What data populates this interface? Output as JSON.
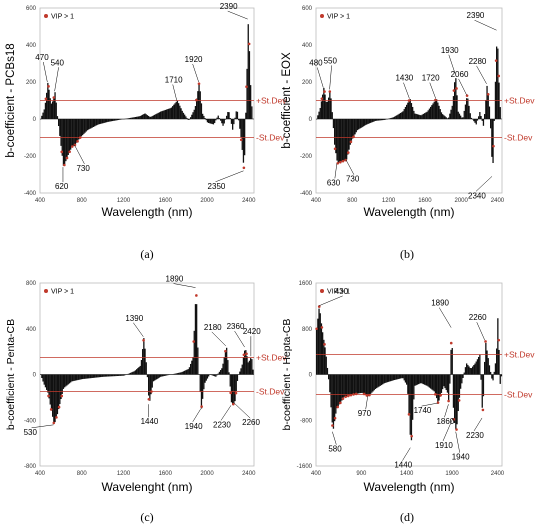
{
  "chart_data": [
    {
      "id": "a",
      "type": "area",
      "caption": "(a)",
      "ylabel": "b-coefficient - PCBs18",
      "xlabel": "Wavelength (nm)",
      "xlim": [
        400,
        2450
      ],
      "ylim": [
        -400,
        600
      ],
      "xticks": [
        400,
        800,
        1200,
        1600,
        2000,
        2400
      ],
      "yticks": [
        -400,
        -200,
        0,
        200,
        400,
        600
      ],
      "legend": "VIP > 1",
      "sd_plus_label": "+St.Dev",
      "sd_minus_label": "-St.Dev",
      "sd_value": 100,
      "annotations": [
        {
          "label": "470",
          "x": 470,
          "y": 200
        },
        {
          "label": "540",
          "x": 540,
          "y": 150
        },
        {
          "label": "620",
          "x": 620,
          "y": -260
        },
        {
          "label": "730",
          "x": 730,
          "y": -140
        },
        {
          "label": "1710",
          "x": 1710,
          "y": 100
        },
        {
          "label": "1920",
          "x": 1920,
          "y": 200
        },
        {
          "label": "2350",
          "x": 2350,
          "y": -280
        },
        {
          "label": "2390",
          "x": 2390,
          "y": 540
        }
      ],
      "profile": [
        [
          400,
          0
        ],
        [
          440,
          60
        ],
        [
          470,
          200
        ],
        [
          500,
          80
        ],
        [
          520,
          100
        ],
        [
          540,
          150
        ],
        [
          560,
          20
        ],
        [
          590,
          -120
        ],
        [
          620,
          -260
        ],
        [
          660,
          -200
        ],
        [
          700,
          -150
        ],
        [
          730,
          -140
        ],
        [
          780,
          -100
        ],
        [
          850,
          -60
        ],
        [
          950,
          -30
        ],
        [
          1050,
          -15
        ],
        [
          1150,
          -5
        ],
        [
          1250,
          5
        ],
        [
          1350,
          15
        ],
        [
          1400,
          30
        ],
        [
          1450,
          10
        ],
        [
          1500,
          25
        ],
        [
          1550,
          40
        ],
        [
          1600,
          50
        ],
        [
          1650,
          60
        ],
        [
          1710,
          100
        ],
        [
          1760,
          40
        ],
        [
          1820,
          -10
        ],
        [
          1880,
          60
        ],
        [
          1920,
          200
        ],
        [
          1950,
          30
        ],
        [
          2000,
          -20
        ],
        [
          2060,
          -30
        ],
        [
          2100,
          20
        ],
        [
          2150,
          -40
        ],
        [
          2200,
          50
        ],
        [
          2240,
          -60
        ],
        [
          2280,
          60
        ],
        [
          2320,
          -100
        ],
        [
          2350,
          -280
        ],
        [
          2370,
          120
        ],
        [
          2390,
          540
        ],
        [
          2410,
          200
        ],
        [
          2430,
          0
        ]
      ]
    },
    {
      "id": "b",
      "type": "area",
      "caption": "(b)",
      "ylabel": "b-coefficient - EOX",
      "xlabel": "Wavelength (nm)",
      "xlim": [
        400,
        2450
      ],
      "ylim": [
        -400,
        600
      ],
      "xticks": [
        400,
        800,
        1200,
        1600,
        2000,
        2400
      ],
      "yticks": [
        -400,
        -200,
        0,
        200,
        400,
        600
      ],
      "legend": "VIP > 1",
      "sd_plus_label": "+St.Dev",
      "sd_minus_label": "-St.Dev",
      "sd_value": 100,
      "annotations": [
        {
          "label": "480",
          "x": 480,
          "y": 170
        },
        {
          "label": "550",
          "x": 550,
          "y": 160
        },
        {
          "label": "630",
          "x": 630,
          "y": -240
        },
        {
          "label": "730",
          "x": 730,
          "y": -220
        },
        {
          "label": "1430",
          "x": 1430,
          "y": 110
        },
        {
          "label": "1720",
          "x": 1720,
          "y": 110
        },
        {
          "label": "1930",
          "x": 1930,
          "y": 250
        },
        {
          "label": "2060",
          "x": 2060,
          "y": 130
        },
        {
          "label": "2280",
          "x": 2280,
          "y": 190
        },
        {
          "label": "2340",
          "x": 2340,
          "y": -310
        },
        {
          "label": "2390",
          "x": 2390,
          "y": 480
        }
      ],
      "profile": [
        [
          400,
          0
        ],
        [
          440,
          60
        ],
        [
          480,
          170
        ],
        [
          510,
          80
        ],
        [
          530,
          110
        ],
        [
          550,
          160
        ],
        [
          575,
          20
        ],
        [
          600,
          -150
        ],
        [
          630,
          -240
        ],
        [
          680,
          -230
        ],
        [
          730,
          -220
        ],
        [
          780,
          -120
        ],
        [
          850,
          -60
        ],
        [
          950,
          -30
        ],
        [
          1050,
          -10
        ],
        [
          1150,
          -5
        ],
        [
          1250,
          10
        ],
        [
          1350,
          40
        ],
        [
          1430,
          110
        ],
        [
          1480,
          30
        ],
        [
          1550,
          20
        ],
        [
          1620,
          40
        ],
        [
          1720,
          110
        ],
        [
          1780,
          30
        ],
        [
          1850,
          0
        ],
        [
          1900,
          80
        ],
        [
          1930,
          250
        ],
        [
          1960,
          40
        ],
        [
          2010,
          0
        ],
        [
          2060,
          130
        ],
        [
          2100,
          10
        ],
        [
          2160,
          -30
        ],
        [
          2200,
          40
        ],
        [
          2240,
          -40
        ],
        [
          2280,
          190
        ],
        [
          2310,
          40
        ],
        [
          2340,
          -310
        ],
        [
          2365,
          120
        ],
        [
          2390,
          480
        ],
        [
          2410,
          200
        ],
        [
          2430,
          0
        ]
      ]
    },
    {
      "id": "c",
      "type": "area",
      "caption": "(c)",
      "ylabel": "b-coefficient - Penta-CB",
      "xlabel": "Wavelenght (nm)",
      "xlim": [
        400,
        2450
      ],
      "ylim": [
        -800,
        800
      ],
      "xticks": [
        400,
        800,
        1200,
        1600,
        2000,
        2400
      ],
      "yticks": [
        -800,
        -400,
        0,
        400,
        800
      ],
      "legend": "VIP > 1",
      "sd_plus_label": "+St.Dev",
      "sd_minus_label": "-St.Dev",
      "sd_value": 150,
      "annotations": [
        {
          "label": "530",
          "x": 530,
          "y": -440
        },
        {
          "label": "1390",
          "x": 1390,
          "y": 330
        },
        {
          "label": "1440",
          "x": 1440,
          "y": -260
        },
        {
          "label": "1890",
          "x": 1890,
          "y": 760
        },
        {
          "label": "1940",
          "x": 1940,
          "y": -300
        },
        {
          "label": "2180",
          "x": 2180,
          "y": 250
        },
        {
          "label": "2230",
          "x": 2230,
          "y": -270
        },
        {
          "label": "2260",
          "x": 2260,
          "y": -250
        },
        {
          "label": "2360",
          "x": 2360,
          "y": 240
        },
        {
          "label": "2420",
          "x": 2420,
          "y": 160
        }
      ],
      "profile": [
        [
          400,
          0
        ],
        [
          430,
          -80
        ],
        [
          470,
          -160
        ],
        [
          500,
          -300
        ],
        [
          530,
          -440
        ],
        [
          560,
          -350
        ],
        [
          620,
          -120
        ],
        [
          700,
          -60
        ],
        [
          800,
          -40
        ],
        [
          900,
          -30
        ],
        [
          1000,
          -20
        ],
        [
          1100,
          -15
        ],
        [
          1200,
          -10
        ],
        [
          1300,
          30
        ],
        [
          1360,
          80
        ],
        [
          1390,
          330
        ],
        [
          1420,
          20
        ],
        [
          1440,
          -260
        ],
        [
          1480,
          -60
        ],
        [
          1550,
          -20
        ],
        [
          1650,
          0
        ],
        [
          1750,
          20
        ],
        [
          1820,
          50
        ],
        [
          1860,
          150
        ],
        [
          1890,
          760
        ],
        [
          1910,
          100
        ],
        [
          1940,
          -300
        ],
        [
          1970,
          -80
        ],
        [
          2020,
          0
        ],
        [
          2080,
          -20
        ],
        [
          2140,
          60
        ],
        [
          2180,
          250
        ],
        [
          2210,
          -30
        ],
        [
          2230,
          -270
        ],
        [
          2260,
          -250
        ],
        [
          2290,
          -20
        ],
        [
          2330,
          80
        ],
        [
          2360,
          240
        ],
        [
          2390,
          100
        ],
        [
          2420,
          160
        ],
        [
          2440,
          0
        ]
      ]
    },
    {
      "id": "d",
      "type": "area",
      "caption": "(d)",
      "ylabel": "b-coefficient - Hepta-CB",
      "xlabel": "Wavelength (nm)",
      "xlim": [
        400,
        2450
      ],
      "ylim": [
        -1600,
        1600
      ],
      "xticks": [
        400,
        900,
        1400,
        1900,
        2400
      ],
      "yticks": [
        -1600,
        -800,
        0,
        800,
        1600
      ],
      "legend": "VIP > 1",
      "sd_plus_label": "+St.Dev",
      "sd_minus_label": "-St.Dev",
      "sd_value": 350,
      "annotations": [
        {
          "label": "430",
          "x": 430,
          "y": 1200
        },
        {
          "label": "580",
          "x": 580,
          "y": -1000
        },
        {
          "label": "970",
          "x": 970,
          "y": -380
        },
        {
          "label": "1440",
          "x": 1440,
          "y": -1280
        },
        {
          "label": "1740",
          "x": 1740,
          "y": -500
        },
        {
          "label": "1860",
          "x": 1860,
          "y": -520
        },
        {
          "label": "1890",
          "x": 1890,
          "y": 820
        },
        {
          "label": "1910",
          "x": 1910,
          "y": -760
        },
        {
          "label": "1940",
          "x": 1940,
          "y": -1000
        },
        {
          "label": "2230",
          "x": 2230,
          "y": -760
        },
        {
          "label": "2260",
          "x": 2260,
          "y": 600
        }
      ],
      "profile": [
        [
          400,
          800
        ],
        [
          430,
          1200
        ],
        [
          460,
          800
        ],
        [
          500,
          400
        ],
        [
          540,
          -200
        ],
        [
          580,
          -1000
        ],
        [
          620,
          -600
        ],
        [
          700,
          -400
        ],
        [
          800,
          -350
        ],
        [
          900,
          -320
        ],
        [
          970,
          -380
        ],
        [
          1050,
          -250
        ],
        [
          1150,
          -150
        ],
        [
          1250,
          -100
        ],
        [
          1350,
          -60
        ],
        [
          1400,
          -200
        ],
        [
          1440,
          -1280
        ],
        [
          1480,
          -200
        ],
        [
          1550,
          -150
        ],
        [
          1620,
          -200
        ],
        [
          1700,
          -300
        ],
        [
          1740,
          -500
        ],
        [
          1800,
          -200
        ],
        [
          1840,
          -300
        ],
        [
          1860,
          -520
        ],
        [
          1890,
          820
        ],
        [
          1910,
          -760
        ],
        [
          1940,
          -1000
        ],
        [
          1980,
          -300
        ],
        [
          2050,
          200
        ],
        [
          2100,
          100
        ],
        [
          2150,
          200
        ],
        [
          2200,
          350
        ],
        [
          2230,
          -760
        ],
        [
          2260,
          600
        ],
        [
          2300,
          200
        ],
        [
          2340,
          -150
        ],
        [
          2380,
          300
        ],
        [
          2400,
          1100
        ],
        [
          2420,
          -200
        ],
        [
          2440,
          0
        ]
      ]
    }
  ]
}
